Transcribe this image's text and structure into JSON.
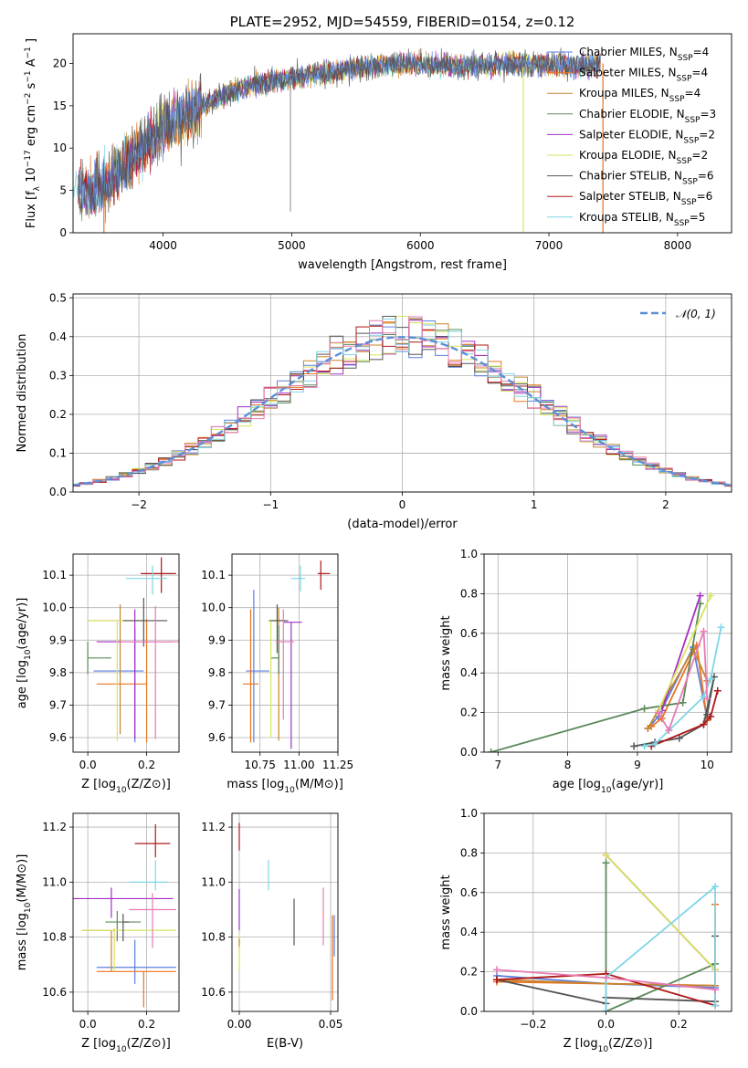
{
  "chart_data": [
    {
      "id": "spectrum",
      "type": "line",
      "title": "PLATE=2952, MJD=54559, FIBERID=0154, z=0.12",
      "xlabel": "wavelength [Angstrom, rest frame]",
      "ylabel": "Flux [f_λ 10^-17 erg cm^-2 s^-1 A^-1 ]",
      "xlim": [
        3300,
        8420
      ],
      "ylim": [
        0,
        23.5
      ],
      "xticks": [
        4000,
        5000,
        6000,
        7000,
        8000
      ],
      "yticks": [
        0,
        5,
        10,
        15,
        20
      ],
      "grid": false,
      "legend_position": "top-right",
      "legend": [
        {
          "label": "Chabrier MILES, N",
          "sub": "SSP",
          "tail": "=4",
          "color": "#5b7fe0"
        },
        {
          "label": "Salpeter MILES, N",
          "sub": "SSP",
          "tail": "=4",
          "color": "#e9731f"
        },
        {
          "label": "Kroupa MILES, N",
          "sub": "SSP",
          "tail": "=4",
          "color": "#c8852e"
        },
        {
          "label": "Chabrier ELODIE, N",
          "sub": "SSP",
          "tail": "=3",
          "color": "#5a8a5a"
        },
        {
          "label": "Salpeter ELODIE, N",
          "sub": "SSP",
          "tail": "=2",
          "color": "#a22fc4"
        },
        {
          "label": "Kroupa ELODIE, N",
          "sub": "SSP",
          "tail": "=2",
          "color": "#d8e35f"
        },
        {
          "label": "Chabrier STELIB, N",
          "sub": "SSP",
          "tail": "=6",
          "color": "#555555"
        },
        {
          "label": "Salpeter STELIB, N",
          "sub": "SSP",
          "tail": "=6",
          "color": "#b01818"
        },
        {
          "label": "Kroupa STELIB, N",
          "sub": "SSP",
          "tail": "=5",
          "color": "#7fd6e6"
        }
      ],
      "continuum_points": {
        "x": [
          3350,
          3450,
          3550,
          3650,
          3800,
          3950,
          4100,
          4300,
          4500,
          4700,
          4900,
          5100,
          5300,
          5500,
          5700,
          5900,
          6100,
          6300,
          6500,
          6700,
          6900,
          7100,
          7300,
          7400
        ],
        "y": [
          5.2,
          5.0,
          5.6,
          7.5,
          9.5,
          11.5,
          13.5,
          15.0,
          16.5,
          17.5,
          18.0,
          18.5,
          19.0,
          19.5,
          19.8,
          20.0,
          19.8,
          19.7,
          19.8,
          20.0,
          19.9,
          19.7,
          19.8,
          20.0
        ]
      }
    },
    {
      "id": "residuals",
      "type": "step",
      "xlabel": "(data-model)/error",
      "ylabel": "Normed distribution",
      "xlim": [
        -2.5,
        2.5
      ],
      "ylim": [
        0,
        0.51
      ],
      "xticks": [
        -2,
        -1,
        0,
        1,
        2
      ],
      "yticks": [
        0.0,
        0.1,
        0.2,
        0.3,
        0.4,
        0.5
      ],
      "grid": true,
      "legend_position": "top-right",
      "legend_label": "𝒩(0, 1)",
      "bin_width": 0.1,
      "reference_color": "#5b8fd6"
    },
    {
      "id": "age_vs_Z",
      "type": "errorbar",
      "xlabel": "Z [log10(Z/Z⊙)]",
      "ylabel": "age  [log10(age/yr)]",
      "xlim": [
        -0.05,
        0.31
      ],
      "ylim": [
        9.555,
        10.165
      ],
      "xticks": [
        0.0,
        0.2
      ],
      "yticks": [
        9.6,
        9.7,
        9.8,
        9.9,
        10.0,
        10.1
      ],
      "points": [
        {
          "x": 0.16,
          "xerr": [
            0.14,
            0.03
          ],
          "y": 9.805,
          "yerr": [
            0.22,
            0.13
          ],
          "color": "#5b7fe0"
        },
        {
          "x": 0.2,
          "xerr": [
            0.17,
            0.0
          ],
          "y": 9.765,
          "yerr": [
            0.18,
            0.2
          ],
          "color": "#e9731f"
        },
        {
          "x": 0.11,
          "xerr": [
            0.11,
            0.08
          ],
          "y": 9.96,
          "yerr": [
            0.35,
            0.05
          ],
          "color": "#c8852e"
        },
        {
          "x": 0.0,
          "xerr": [
            0.0,
            0.08
          ],
          "y": 9.845,
          "yerr": [
            0.05,
            0.05
          ],
          "color": "#5a8a5a"
        },
        {
          "x": 0.16,
          "xerr": [
            0.13,
            0.13
          ],
          "y": 9.895,
          "yerr": [
            0.3,
            0.1
          ],
          "color": "#a22fc4"
        },
        {
          "x": 0.1,
          "xerr": [
            0.1,
            0.1
          ],
          "y": 9.96,
          "yerr": [
            0.37,
            0.0
          ],
          "color": "#d8e35f"
        },
        {
          "x": 0.19,
          "xerr": [
            0.07,
            0.08
          ],
          "y": 9.96,
          "yerr": [
            0.08,
            0.07
          ],
          "color": "#555555"
        },
        {
          "x": 0.25,
          "xerr": [
            0.07,
            0.05
          ],
          "y": 10.105,
          "yerr": [
            0.06,
            0.05
          ],
          "color": "#b01818"
        },
        {
          "x": 0.22,
          "xerr": [
            0.09,
            0.05
          ],
          "y": 10.09,
          "yerr": [
            0.05,
            0.04
          ],
          "color": "#7fd6e6"
        },
        {
          "x": 0.23,
          "xerr": [
            0.12,
            0.08
          ],
          "y": 9.895,
          "yerr": [
            0.3,
            0.11
          ],
          "color": "#e87ab4"
        }
      ]
    },
    {
      "id": "age_vs_mass",
      "type": "errorbar",
      "xlabel": "mass [log10(M/M⊙)]",
      "ylabel": "",
      "xlim": [
        10.57,
        11.25
      ],
      "ylim": [
        9.555,
        10.165
      ],
      "xticks": [
        10.75,
        11.0,
        11.25
      ],
      "yticks": [
        9.6,
        9.7,
        9.8,
        9.9,
        10.0,
        10.1
      ],
      "points": [
        {
          "x": 10.71,
          "xerr": [
            0.05,
            0.1
          ],
          "y": 9.805,
          "yerr": [
            0.22,
            0.25
          ],
          "color": "#5b7fe0"
        },
        {
          "x": 10.69,
          "xerr": [
            0.05,
            0.05
          ],
          "y": 9.765,
          "yerr": [
            0.18,
            0.23
          ],
          "color": "#e9731f"
        },
        {
          "x": 10.87,
          "xerr": [
            0.04,
            0.04
          ],
          "y": 9.96,
          "yerr": [
            0.37,
            0.04
          ],
          "color": "#c8852e"
        },
        {
          "x": 10.87,
          "xerr": [
            0.05,
            0.0
          ],
          "y": 9.845,
          "yerr": [
            0.05,
            0.1
          ],
          "color": "#5a8a5a"
        },
        {
          "x": 10.95,
          "xerr": [
            0.05,
            0.07
          ],
          "y": 9.955,
          "yerr": [
            0.39,
            0.0
          ],
          "color": "#a22fc4"
        },
        {
          "x": 10.82,
          "xerr": [
            0.02,
            0.04
          ],
          "y": 9.96,
          "yerr": [
            0.36,
            0.0
          ],
          "color": "#d8e35f"
        },
        {
          "x": 10.86,
          "xerr": [
            0.05,
            0.07
          ],
          "y": 9.96,
          "yerr": [
            0.1,
            0.05
          ],
          "color": "#555555"
        },
        {
          "x": 11.14,
          "xerr": [
            0.02,
            0.06
          ],
          "y": 10.105,
          "yerr": [
            0.05,
            0.04
          ],
          "color": "#b01818"
        },
        {
          "x": 11.01,
          "xerr": [
            0.06,
            0.03
          ],
          "y": 10.09,
          "yerr": [
            0.04,
            0.04
          ],
          "color": "#7fd6e6"
        },
        {
          "x": 10.9,
          "xerr": [
            0.05,
            0.07
          ],
          "y": 9.895,
          "yerr": [
            0.24,
            0.1
          ],
          "color": "#e87ab4"
        }
      ]
    },
    {
      "id": "mass_weight_vs_age",
      "type": "line",
      "xlabel": "age  [log10(age/yr)]",
      "ylabel": "mass weight",
      "xlim": [
        6.8,
        10.35
      ],
      "ylim": [
        0,
        1.0
      ],
      "xticks": [
        7,
        8,
        9,
        10
      ],
      "yticks": [
        0.0,
        0.2,
        0.4,
        0.6,
        0.8,
        1.0
      ],
      "series": [
        {
          "color": "#5b7fe0",
          "x": [
            9.15,
            9.3,
            9.8,
            10.0
          ],
          "y": [
            0.12,
            0.18,
            0.53,
            0.17
          ]
        },
        {
          "color": "#e9731f",
          "x": [
            9.2,
            9.35,
            9.85,
            10.0
          ],
          "y": [
            0.13,
            0.17,
            0.54,
            0.16
          ]
        },
        {
          "color": "#c8852e",
          "x": [
            9.15,
            9.8,
            10.0
          ],
          "y": [
            0.12,
            0.52,
            0.36
          ]
        },
        {
          "color": "#5a8a5a",
          "x": [
            6.9,
            9.1,
            9.65,
            9.9
          ],
          "y": [
            0.0,
            0.22,
            0.25,
            0.75
          ]
        },
        {
          "color": "#a22fc4",
          "x": [
            9.35,
            9.9
          ],
          "y": [
            0.21,
            0.79
          ]
        },
        {
          "color": "#d8e35f",
          "x": [
            9.3,
            10.05
          ],
          "y": [
            0.21,
            0.79
          ]
        },
        {
          "color": "#555555",
          "x": [
            8.95,
            9.25,
            9.6,
            9.95,
            10.1,
            10.0
          ],
          "y": [
            0.03,
            0.05,
            0.07,
            0.14,
            0.38,
            0.19
          ]
        },
        {
          "color": "#b01818",
          "x": [
            9.2,
            9.95,
            10.05,
            10.15
          ],
          "y": [
            0.03,
            0.14,
            0.18,
            0.31
          ]
        },
        {
          "color": "#7fd6e6",
          "x": [
            9.1,
            9.25,
            9.95,
            10.05,
            10.2
          ],
          "y": [
            0.03,
            0.04,
            0.28,
            0.37,
            0.63
          ]
        },
        {
          "color": "#e87ab4",
          "x": [
            9.3,
            9.45,
            9.95,
            10.0
          ],
          "y": [
            0.2,
            0.11,
            0.61,
            0.27
          ]
        }
      ]
    },
    {
      "id": "mass_vs_Z",
      "type": "errorbar",
      "xlabel": "Z [log10(Z/Z⊙)]",
      "ylabel": "mass [log10(M/M⊙)]",
      "xlim": [
        -0.05,
        0.31
      ],
      "ylim": [
        10.53,
        11.25
      ],
      "xticks": [
        0.0,
        0.2
      ],
      "yticks": [
        10.6,
        10.8,
        11.0,
        11.2
      ],
      "points": [
        {
          "x": 0.16,
          "xerr": [
            0.13,
            0.14
          ],
          "y": 10.69,
          "yerr": [
            0.06,
            0.1
          ],
          "color": "#5b7fe0"
        },
        {
          "x": 0.19,
          "xerr": [
            0.16,
            0.11
          ],
          "y": 10.675,
          "yerr": [
            0.13,
            0.0
          ],
          "color": "#e9731f"
        },
        {
          "x": 0.08,
          "xerr": [
            0.1,
            0.0
          ],
          "y": 10.825,
          "yerr": [
            0.15,
            0.0
          ],
          "color": "#c8852e"
        },
        {
          "x": 0.1,
          "xerr": [
            0.04,
            0.08
          ],
          "y": 10.855,
          "yerr": [
            0.07,
            0.04
          ],
          "color": "#5a8a5a"
        },
        {
          "x": 0.08,
          "xerr": [
            0.13,
            0.21
          ],
          "y": 10.94,
          "yerr": [
            0.07,
            0.04
          ],
          "color": "#a22fc4"
        },
        {
          "x": 0.09,
          "xerr": [
            0.11,
            0.21
          ],
          "y": 10.825,
          "yerr": [
            0.15,
            0.01
          ],
          "color": "#d8e35f"
        },
        {
          "x": 0.12,
          "xerr": [
            0.0,
            0.02
          ],
          "y": 10.855,
          "yerr": [
            0.07,
            0.03
          ],
          "color": "#555555"
        },
        {
          "x": 0.23,
          "xerr": [
            0.07,
            0.05
          ],
          "y": 11.14,
          "yerr": [
            0.05,
            0.07
          ],
          "color": "#b01818"
        },
        {
          "x": 0.23,
          "xerr": [
            0.09,
            0.04
          ],
          "y": 11.0,
          "yerr": [
            0.03,
            0.08
          ],
          "color": "#7fd6e6"
        },
        {
          "x": 0.22,
          "xerr": [
            0.08,
            0.08
          ],
          "y": 10.9,
          "yerr": [
            0.14,
            0.06
          ],
          "color": "#e87ab4"
        }
      ]
    },
    {
      "id": "mass_vs_ebv",
      "type": "errorbar",
      "xlabel": "E(B-V)",
      "ylabel": "",
      "xlim": [
        -0.004,
        0.054
      ],
      "ylim": [
        10.53,
        11.25
      ],
      "xticks": [
        0.0,
        0.05
      ],
      "yticks": [
        10.6,
        10.8,
        11.0,
        11.2
      ],
      "points": [
        {
          "x": 0.0,
          "y": 10.915,
          "yerr": [
            0.09,
            0.06
          ],
          "color": "#a22fc4"
        },
        {
          "x": 0.0,
          "y": 11.165,
          "yerr": [
            0.05,
            0.05
          ],
          "color": "#b01818"
        },
        {
          "x": 0.0,
          "y": 10.76,
          "yerr": [
            0.08,
            0.05
          ],
          "color": "#d8e35f"
        },
        {
          "x": 0.0,
          "y": 10.765,
          "yerr": [
            0.0,
            0.03
          ],
          "color": "#c8852e"
        },
        {
          "x": 0.016,
          "y": 11.02,
          "yerr": [
            0.05,
            0.06
          ],
          "color": "#7fd6e6"
        },
        {
          "x": 0.03,
          "y": 10.86,
          "yerr": [
            0.09,
            0.08
          ],
          "color": "#555555"
        },
        {
          "x": 0.046,
          "y": 10.85,
          "yerr": [
            0.08,
            0.13
          ],
          "color": "#e87ab4"
        },
        {
          "x": 0.051,
          "y": 10.72,
          "yerr": [
            0.15,
            0.16
          ],
          "color": "#e9731f"
        },
        {
          "x": 0.052,
          "y": 10.8,
          "yerr": [
            0.07,
            0.08
          ],
          "color": "#5b7fe0"
        }
      ]
    },
    {
      "id": "mass_weight_vs_Z",
      "type": "line",
      "xlabel": "Z [log10(Z/Z⊙)]",
      "ylabel": "mass weight",
      "xlim": [
        -0.335,
        0.345
      ],
      "ylim": [
        0,
        1.0
      ],
      "xticks": [
        -0.2,
        0.0,
        0.2
      ],
      "yticks": [
        0.0,
        0.2,
        0.4,
        0.6,
        0.8,
        1.0
      ],
      "series": [
        {
          "color": "#5b7fe0",
          "x": [
            -0.3,
            0.0,
            0.3
          ],
          "y": [
            0.18,
            0.14,
            0.12
          ]
        },
        {
          "color": "#e9731f",
          "x": [
            -0.3,
            0.0,
            0.3,
            0.3
          ],
          "y": [
            0.15,
            0.14,
            0.13,
            0.54
          ]
        },
        {
          "color": "#c8852e",
          "x": [
            -0.3,
            0.0,
            0.3
          ],
          "y": [
            0.16,
            0.14,
            0.13
          ]
        },
        {
          "color": "#5a8a5a",
          "x": [
            0.0,
            0.0,
            0.3
          ],
          "y": [
            0.75,
            0.0,
            0.24
          ]
        },
        {
          "color": "#a22fc4",
          "x": [
            0.0,
            0.3
          ],
          "y": [
            0.79,
            0.21
          ]
        },
        {
          "color": "#d8e35f",
          "x": [
            0.0,
            0.3
          ],
          "y": [
            0.79,
            0.21
          ]
        },
        {
          "color": "#555555",
          "x": [
            -0.3,
            0.0,
            0.0,
            0.3,
            0.3
          ],
          "y": [
            0.16,
            0.04,
            0.07,
            0.05,
            0.38
          ]
        },
        {
          "color": "#b01818",
          "x": [
            -0.3,
            0.0,
            0.3
          ],
          "y": [
            0.16,
            0.19,
            0.03
          ]
        },
        {
          "color": "#7fd6e6",
          "x": [
            0.0,
            0.0,
            0.3,
            0.3
          ],
          "y": [
            0.0,
            0.17,
            0.63,
            0.03
          ]
        },
        {
          "color": "#e87ab4",
          "x": [
            -0.3,
            0.0,
            0.3
          ],
          "y": [
            0.21,
            0.17,
            0.11
          ]
        }
      ]
    }
  ]
}
